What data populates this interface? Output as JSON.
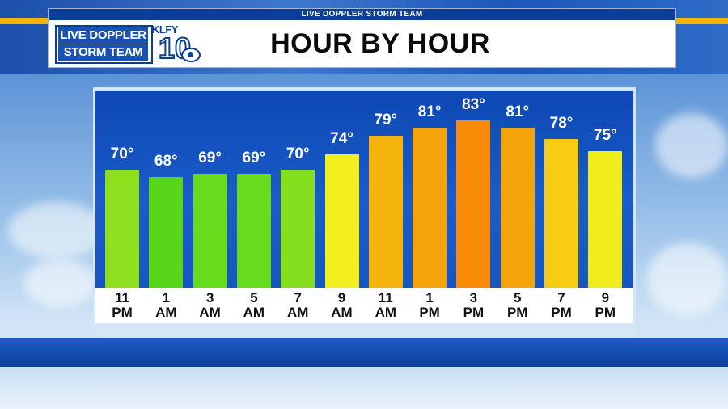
{
  "header": {
    "strip_text": "LIVE DOPPLER STORM TEAM",
    "title": "HOUR BY HOUR",
    "logo_line1": "LIVE DOPPLER",
    "logo_line2": "STORM TEAM",
    "station_call": "KLFY",
    "station_number": "10"
  },
  "colors": {
    "panel_blue": "#1656c0",
    "header_blue": "#0b3e98",
    "accent_gold": "#f4b400"
  },
  "chart_data": {
    "type": "bar",
    "title": "HOUR BY HOUR",
    "categories": [
      {
        "line1": "11",
        "line2": "PM"
      },
      {
        "line1": "1",
        "line2": "AM"
      },
      {
        "line1": "3",
        "line2": "AM"
      },
      {
        "line1": "5",
        "line2": "AM"
      },
      {
        "line1": "7",
        "line2": "AM"
      },
      {
        "line1": "9",
        "line2": "AM"
      },
      {
        "line1": "11",
        "line2": "AM"
      },
      {
        "line1": "1",
        "line2": "PM"
      },
      {
        "line1": "3",
        "line2": "PM"
      },
      {
        "line1": "5",
        "line2": "PM"
      },
      {
        "line1": "7",
        "line2": "PM"
      },
      {
        "line1": "9",
        "line2": "PM"
      }
    ],
    "values": [
      70,
      68,
      69,
      69,
      70,
      74,
      79,
      81,
      83,
      81,
      78,
      75
    ],
    "value_labels": [
      "70°",
      "68°",
      "69°",
      "69°",
      "70°",
      "74°",
      "79°",
      "81°",
      "83°",
      "81°",
      "78°",
      "75°"
    ],
    "bar_colors": [
      "#8ee01f",
      "#57d61c",
      "#66dc1c",
      "#66dc1c",
      "#86df1e",
      "#f3ee1d",
      "#f5b40d",
      "#f5a30a",
      "#f88b08",
      "#f5a30a",
      "#f5cc12",
      "#f0ec1c"
    ],
    "xlabel": "",
    "ylabel": "",
    "grid": false,
    "legend": "none"
  }
}
